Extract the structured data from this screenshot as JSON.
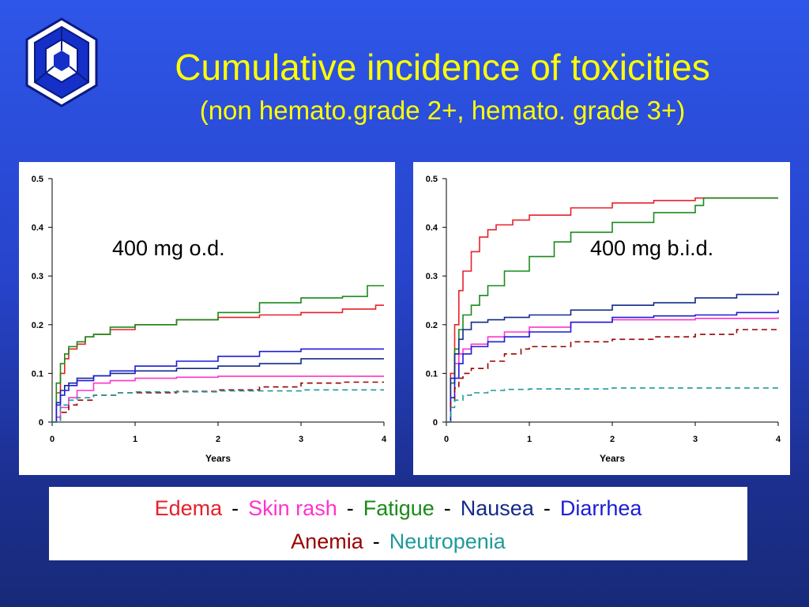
{
  "title": "Cumulative incidence of toxicities",
  "subtitle": "(non hemato.grade 2+, hemato. grade 3+)",
  "colors": {
    "Edema": "#e8202a",
    "Skin rash": "#ff33cc",
    "Fatigue": "#1a8a1a",
    "Nausea": "#132a8c",
    "Diarrhea": "#1c1cd9",
    "Anemia": "#990000",
    "Neutropenia": "#1f9a9a"
  },
  "legend": {
    "row1": [
      "Edema",
      "Skin rash",
      "Fatigue",
      "Nausea",
      "Diarrhea"
    ],
    "row2": [
      "Anemia",
      "Neutropenia"
    ],
    "separator": "-"
  },
  "chart_data": [
    {
      "type": "line",
      "annotation": "400 mg o.d.",
      "xlabel": "Years",
      "ylabel": "",
      "xlim": [
        0,
        4
      ],
      "ylim": [
        0,
        0.5
      ],
      "xticks": [
        "0",
        "1",
        "2",
        "3",
        "4"
      ],
      "yticks": [
        "0",
        "0.1",
        "0.2",
        "0.3",
        "0.4",
        "0.5"
      ],
      "series": [
        {
          "name": "Edema",
          "dashed": false,
          "x": [
            0,
            0.05,
            0.1,
            0.15,
            0.2,
            0.3,
            0.4,
            0.5,
            0.7,
            1.0,
            1.5,
            2.0,
            2.5,
            3.0,
            3.5,
            3.9,
            4.0
          ],
          "y": [
            0,
            0.06,
            0.1,
            0.13,
            0.15,
            0.16,
            0.175,
            0.18,
            0.19,
            0.2,
            0.21,
            0.215,
            0.22,
            0.225,
            0.232,
            0.24,
            0.24
          ]
        },
        {
          "name": "Skin rash",
          "dashed": false,
          "x": [
            0,
            0.05,
            0.1,
            0.2,
            0.3,
            0.5,
            0.7,
            1.0,
            1.5,
            2.0,
            3.0,
            4.0
          ],
          "y": [
            0,
            0.01,
            0.03,
            0.05,
            0.065,
            0.08,
            0.085,
            0.09,
            0.092,
            0.094,
            0.094,
            0.094
          ]
        },
        {
          "name": "Fatigue",
          "dashed": false,
          "x": [
            0,
            0.05,
            0.1,
            0.15,
            0.2,
            0.3,
            0.4,
            0.5,
            0.7,
            1.0,
            1.5,
            2.0,
            2.5,
            3.0,
            3.5,
            3.8,
            4.0
          ],
          "y": [
            0,
            0.08,
            0.12,
            0.14,
            0.155,
            0.165,
            0.175,
            0.18,
            0.195,
            0.2,
            0.21,
            0.225,
            0.245,
            0.255,
            0.258,
            0.28,
            0.28
          ]
        },
        {
          "name": "Nausea",
          "dashed": false,
          "x": [
            0,
            0.05,
            0.1,
            0.15,
            0.2,
            0.3,
            0.5,
            0.7,
            1.0,
            1.5,
            2.0,
            2.5,
            3.0,
            3.5,
            4.0
          ],
          "y": [
            0,
            0.04,
            0.065,
            0.075,
            0.08,
            0.09,
            0.095,
            0.1,
            0.105,
            0.11,
            0.115,
            0.12,
            0.13,
            0.13,
            0.13
          ]
        },
        {
          "name": "Diarrhea",
          "dashed": false,
          "x": [
            0,
            0.05,
            0.1,
            0.15,
            0.2,
            0.3,
            0.5,
            0.7,
            1.0,
            1.5,
            2.0,
            2.5,
            3.0,
            3.5,
            4.0
          ],
          "y": [
            0,
            0.035,
            0.055,
            0.065,
            0.075,
            0.085,
            0.095,
            0.105,
            0.115,
            0.125,
            0.135,
            0.145,
            0.15,
            0.15,
            0.15
          ]
        },
        {
          "name": "Anemia",
          "dashed": true,
          "x": [
            0,
            0.1,
            0.2,
            0.3,
            0.5,
            0.8,
            1.0,
            1.5,
            2.0,
            2.5,
            3.0,
            3.5,
            4.0
          ],
          "y": [
            0,
            0.02,
            0.035,
            0.045,
            0.055,
            0.06,
            0.06,
            0.063,
            0.066,
            0.072,
            0.08,
            0.082,
            0.082
          ]
        },
        {
          "name": "Neutropenia",
          "dashed": true,
          "x": [
            0,
            0.1,
            0.2,
            0.3,
            0.5,
            0.8,
            1.0,
            2.0,
            3.0,
            4.0
          ],
          "y": [
            0,
            0.035,
            0.045,
            0.05,
            0.055,
            0.06,
            0.062,
            0.064,
            0.066,
            0.066
          ]
        }
      ]
    },
    {
      "type": "line",
      "annotation": "400 mg b.i.d.",
      "xlabel": "Years",
      "ylabel": "",
      "xlim": [
        0,
        4
      ],
      "ylim": [
        0,
        0.5
      ],
      "xticks": [
        "0",
        "1",
        "2",
        "3",
        "4"
      ],
      "yticks": [
        "0",
        "0.1",
        "0.2",
        "0.3",
        "0.4",
        "0.5"
      ],
      "series": [
        {
          "name": "Edema",
          "dashed": false,
          "x": [
            0,
            0.05,
            0.1,
            0.15,
            0.2,
            0.3,
            0.4,
            0.5,
            0.6,
            0.8,
            1.0,
            1.5,
            2.0,
            2.5,
            3.0,
            3.5,
            4.0
          ],
          "y": [
            0,
            0.1,
            0.2,
            0.27,
            0.31,
            0.35,
            0.38,
            0.395,
            0.405,
            0.415,
            0.425,
            0.44,
            0.45,
            0.455,
            0.46,
            0.46,
            0.46
          ]
        },
        {
          "name": "Skin rash",
          "dashed": false,
          "x": [
            0,
            0.05,
            0.1,
            0.15,
            0.2,
            0.3,
            0.5,
            0.7,
            1.0,
            1.5,
            2.0,
            3.0,
            4.0
          ],
          "y": [
            0,
            0.08,
            0.12,
            0.14,
            0.15,
            0.16,
            0.175,
            0.185,
            0.195,
            0.205,
            0.21,
            0.213,
            0.215
          ]
        },
        {
          "name": "Fatigue",
          "dashed": false,
          "x": [
            0,
            0.05,
            0.1,
            0.15,
            0.2,
            0.3,
            0.4,
            0.5,
            0.7,
            1.0,
            1.3,
            1.5,
            2.0,
            2.5,
            3.0,
            3.1,
            3.5,
            4.0
          ],
          "y": [
            0,
            0.08,
            0.15,
            0.19,
            0.22,
            0.24,
            0.26,
            0.28,
            0.31,
            0.34,
            0.37,
            0.39,
            0.41,
            0.43,
            0.445,
            0.46,
            0.46,
            0.46
          ]
        },
        {
          "name": "Nausea",
          "dashed": false,
          "x": [
            0,
            0.05,
            0.1,
            0.15,
            0.2,
            0.3,
            0.5,
            0.7,
            1.0,
            1.5,
            2.0,
            2.5,
            3.0,
            3.5,
            4.0
          ],
          "y": [
            0,
            0.09,
            0.14,
            0.17,
            0.19,
            0.205,
            0.21,
            0.215,
            0.22,
            0.23,
            0.24,
            0.245,
            0.255,
            0.262,
            0.268
          ]
        },
        {
          "name": "Diarrhea",
          "dashed": false,
          "x": [
            0,
            0.05,
            0.1,
            0.15,
            0.2,
            0.3,
            0.5,
            0.7,
            1.0,
            1.5,
            2.0,
            2.5,
            3.0,
            3.5,
            4.0
          ],
          "y": [
            0,
            0.05,
            0.09,
            0.12,
            0.14,
            0.155,
            0.165,
            0.175,
            0.185,
            0.205,
            0.215,
            0.218,
            0.22,
            0.225,
            0.23
          ]
        },
        {
          "name": "Anemia",
          "dashed": true,
          "x": [
            0,
            0.05,
            0.1,
            0.15,
            0.2,
            0.3,
            0.5,
            0.7,
            0.9,
            1.0,
            1.5,
            2.0,
            2.5,
            3.0,
            3.5,
            4.0
          ],
          "y": [
            0,
            0.04,
            0.07,
            0.09,
            0.1,
            0.11,
            0.125,
            0.14,
            0.15,
            0.155,
            0.165,
            0.17,
            0.175,
            0.18,
            0.19,
            0.19
          ]
        },
        {
          "name": "Neutropenia",
          "dashed": true,
          "x": [
            0,
            0.05,
            0.1,
            0.2,
            0.3,
            0.5,
            0.7,
            1.0,
            2.0,
            3.0,
            4.0
          ],
          "y": [
            0,
            0.03,
            0.045,
            0.055,
            0.06,
            0.065,
            0.067,
            0.068,
            0.07,
            0.07,
            0.072
          ]
        }
      ]
    }
  ]
}
